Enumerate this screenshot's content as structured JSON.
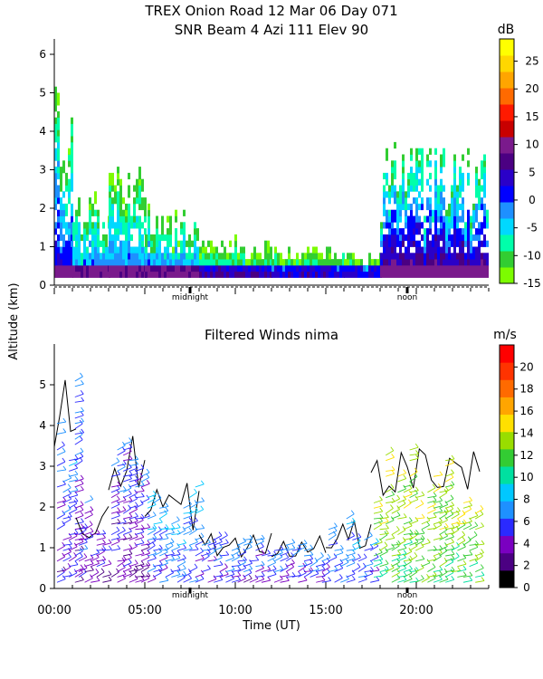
{
  "title_line1": "TREX Onion Road  12 Mar 06 Day 071",
  "title_line2": "SNR Beam 4 Azi 111 Elev 90",
  "shared_ylabel": "Altitude (km)",
  "chart_data": [
    {
      "type": "heatmap",
      "title": "",
      "ylabel": "",
      "ylim": [
        0,
        6.4
      ],
      "xlim": [
        0,
        24
      ],
      "yticks": [
        "0",
        "1",
        "2",
        "3",
        "4",
        "5",
        "6"
      ],
      "x_marker_labels": [
        {
          "label": "midnight",
          "x": 7.5
        },
        {
          "label": "noon",
          "x": 19.5
        }
      ],
      "colorbar": {
        "unit": "dB",
        "range": [
          -15,
          29
        ],
        "tick_labels": [
          "25",
          "20",
          "15",
          "10",
          "5",
          "0",
          "-5",
          "-10",
          "-15"
        ],
        "colors": [
          "#7cfc00",
          "#32cd32",
          "#00ffaa",
          "#00d8ff",
          "#1e90ff",
          "#0000ff",
          "#2a00c8",
          "#4b0082",
          "#7a1a8c",
          "#c80000",
          "#ff1a00",
          "#ff6a00",
          "#ffa500",
          "#ffd700",
          "#ffff00"
        ]
      },
      "regions": [
        {
          "x0": 0.0,
          "x1": 1.0,
          "top": 5.3,
          "level": 0.35
        },
        {
          "x0": 1.0,
          "x1": 3.0,
          "top": 2.3,
          "level": 0.3
        },
        {
          "x0": 3.0,
          "x1": 5.0,
          "top": 3.0,
          "level": 0.28
        },
        {
          "x0": 5.0,
          "x1": 8.0,
          "top": 2.0,
          "level": 0.3
        },
        {
          "x0": 8.0,
          "x1": 12.0,
          "top": 1.2,
          "level": 0.22
        },
        {
          "x0": 12.0,
          "x1": 16.0,
          "top": 1.0,
          "level": 0.2
        },
        {
          "x0": 16.0,
          "x1": 18.0,
          "top": 0.8,
          "level": 0.2
        },
        {
          "x0": 18.0,
          "x1": 24.0,
          "top": 3.6,
          "level": 0.45
        }
      ]
    },
    {
      "type": "scatter",
      "title": "Filtered Winds nima",
      "xlabel": "Time (UT)",
      "ylabel": "",
      "ylim": [
        0,
        6
      ],
      "xlim": [
        0,
        24
      ],
      "xticks": [
        "00:00",
        "05:00",
        "10:00",
        "15:00",
        "20:00"
      ],
      "yticks": [
        "0",
        "1",
        "2",
        "3",
        "4",
        "5"
      ],
      "x_marker_labels": [
        {
          "label": "midnight",
          "x": 7.5
        },
        {
          "label": "noon",
          "x": 19.5
        }
      ],
      "colorbar": {
        "unit": "m/s",
        "range": [
          0,
          22
        ],
        "tick_labels": [
          "20",
          "18",
          "16",
          "14",
          "12",
          "10",
          "8",
          "6",
          "4",
          "2",
          "0"
        ],
        "colors": [
          "#000000",
          "#4b0082",
          "#7a00c0",
          "#2a2aff",
          "#1e90ff",
          "#00c8ff",
          "#00e0a0",
          "#33cc33",
          "#99dd00",
          "#ffe000",
          "#ffa500",
          "#ff6a00",
          "#ff3300",
          "#ff0000"
        ]
      },
      "wind_regions": [
        {
          "x0": 0.0,
          "x1": 1.2,
          "top": 5.3,
          "speed": 4
        },
        {
          "x0": 1.2,
          "x1": 3.0,
          "top": 2.2,
          "speed": 3
        },
        {
          "x0": 3.0,
          "x1": 5.0,
          "top": 3.9,
          "speed": 3
        },
        {
          "x0": 5.0,
          "x1": 8.0,
          "top": 2.6,
          "speed": 5
        },
        {
          "x0": 8.0,
          "x1": 12.0,
          "top": 1.4,
          "speed": 4
        },
        {
          "x0": 12.0,
          "x1": 15.0,
          "top": 1.3,
          "speed": 4
        },
        {
          "x0": 15.0,
          "x1": 17.5,
          "top": 1.8,
          "speed": 5
        },
        {
          "x0": 17.5,
          "x1": 23.5,
          "top": 3.6,
          "speed": 11
        }
      ]
    }
  ]
}
